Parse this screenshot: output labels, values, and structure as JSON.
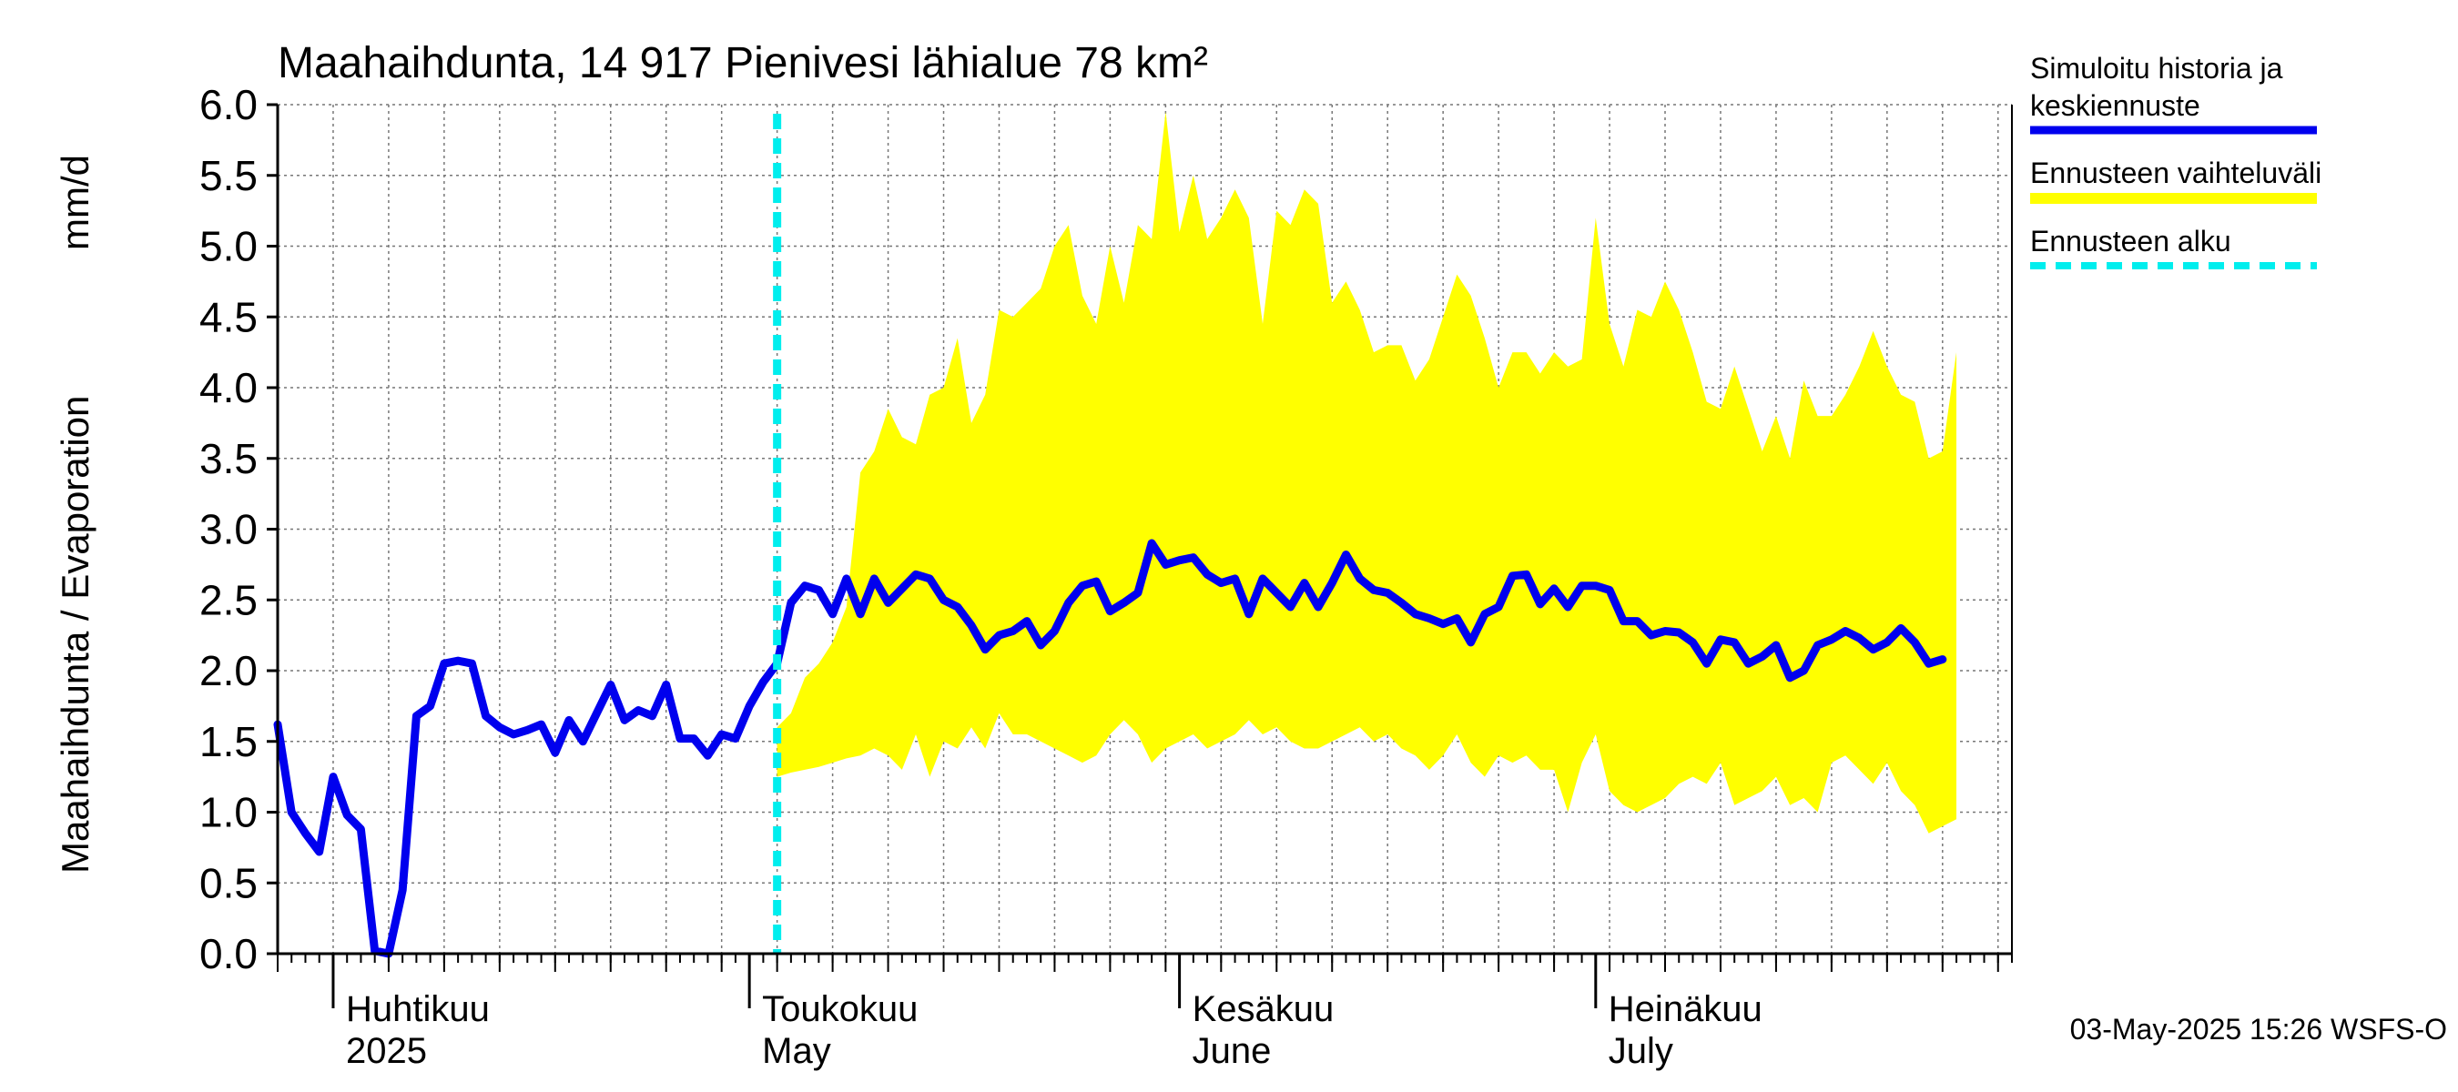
{
  "chart_data": {
    "type": "line",
    "title": "Maahaihdunta, 14 917 Pienivesi lähialue 78 km²",
    "ylabel_left": "Maahaihdunta / Evaporation",
    "ylabel_unit": "mm/d",
    "ylim": [
      0,
      6
    ],
    "yticks": [
      "0.0",
      "0.5",
      "1.0",
      "1.5",
      "2.0",
      "2.5",
      "3.0",
      "3.5",
      "4.0",
      "4.5",
      "5.0",
      "5.5",
      "6.0"
    ],
    "x_start": "2025-03-28",
    "x_end": "2025-07-31",
    "forecast_start": "2025-05-03",
    "month_labels": [
      {
        "date": "2025-04-01",
        "fi": "Huhtikuu",
        "en": "2025"
      },
      {
        "date": "2025-05-01",
        "fi": "Toukokuu",
        "en": "May"
      },
      {
        "date": "2025-06-01",
        "fi": "Kesäkuu",
        "en": "June"
      },
      {
        "date": "2025-07-01",
        "fi": "Heinäkuu",
        "en": "July"
      }
    ],
    "grid": true,
    "series": [
      {
        "name": "Simuloitu historia ja keskiennuste",
        "color": "#0000ee",
        "points": [
          [
            "2025-03-28",
            1.62
          ],
          [
            "2025-03-29",
            1.0
          ],
          [
            "2025-03-30",
            0.85
          ],
          [
            "2025-03-31",
            0.72
          ],
          [
            "2025-04-01",
            1.25
          ],
          [
            "2025-04-02",
            0.98
          ],
          [
            "2025-04-03",
            0.88
          ],
          [
            "2025-04-04",
            0.02
          ],
          [
            "2025-04-05",
            0.0
          ],
          [
            "2025-04-06",
            0.45
          ],
          [
            "2025-04-07",
            1.68
          ],
          [
            "2025-04-08",
            1.75
          ],
          [
            "2025-04-09",
            2.05
          ],
          [
            "2025-04-10",
            2.07
          ],
          [
            "2025-04-11",
            2.05
          ],
          [
            "2025-04-12",
            1.68
          ],
          [
            "2025-04-13",
            1.6
          ],
          [
            "2025-04-14",
            1.55
          ],
          [
            "2025-04-15",
            1.58
          ],
          [
            "2025-04-16",
            1.62
          ],
          [
            "2025-04-17",
            1.42
          ],
          [
            "2025-04-18",
            1.65
          ],
          [
            "2025-04-19",
            1.5
          ],
          [
            "2025-04-20",
            1.7
          ],
          [
            "2025-04-21",
            1.9
          ],
          [
            "2025-04-22",
            1.65
          ],
          [
            "2025-04-23",
            1.72
          ],
          [
            "2025-04-24",
            1.68
          ],
          [
            "2025-04-25",
            1.9
          ],
          [
            "2025-04-26",
            1.52
          ],
          [
            "2025-04-27",
            1.52
          ],
          [
            "2025-04-28",
            1.4
          ],
          [
            "2025-04-29",
            1.55
          ],
          [
            "2025-04-30",
            1.52
          ],
          [
            "2025-05-01",
            1.75
          ],
          [
            "2025-05-02",
            1.92
          ],
          [
            "2025-05-03",
            2.05
          ],
          [
            "2025-05-04",
            2.48
          ],
          [
            "2025-05-05",
            2.6
          ],
          [
            "2025-05-06",
            2.57
          ],
          [
            "2025-05-07",
            2.4
          ],
          [
            "2025-05-08",
            2.65
          ],
          [
            "2025-05-09",
            2.4
          ],
          [
            "2025-05-10",
            2.65
          ],
          [
            "2025-05-11",
            2.48
          ],
          [
            "2025-05-12",
            2.58
          ],
          [
            "2025-05-13",
            2.68
          ],
          [
            "2025-05-14",
            2.65
          ],
          [
            "2025-05-15",
            2.5
          ],
          [
            "2025-05-16",
            2.45
          ],
          [
            "2025-05-17",
            2.32
          ],
          [
            "2025-05-18",
            2.15
          ],
          [
            "2025-05-19",
            2.25
          ],
          [
            "2025-05-20",
            2.28
          ],
          [
            "2025-05-21",
            2.35
          ],
          [
            "2025-05-22",
            2.18
          ],
          [
            "2025-05-23",
            2.28
          ],
          [
            "2025-05-24",
            2.48
          ],
          [
            "2025-05-25",
            2.6
          ],
          [
            "2025-05-26",
            2.63
          ],
          [
            "2025-05-27",
            2.42
          ],
          [
            "2025-05-28",
            2.48
          ],
          [
            "2025-05-29",
            2.55
          ],
          [
            "2025-05-30",
            2.9
          ],
          [
            "2025-05-31",
            2.75
          ],
          [
            "2025-06-01",
            2.78
          ],
          [
            "2025-06-02",
            2.8
          ],
          [
            "2025-06-03",
            2.68
          ],
          [
            "2025-06-04",
            2.62
          ],
          [
            "2025-06-05",
            2.65
          ],
          [
            "2025-06-06",
            2.4
          ],
          [
            "2025-06-07",
            2.65
          ],
          [
            "2025-06-08",
            2.55
          ],
          [
            "2025-06-09",
            2.45
          ],
          [
            "2025-06-10",
            2.62
          ],
          [
            "2025-06-11",
            2.45
          ],
          [
            "2025-06-12",
            2.62
          ],
          [
            "2025-06-13",
            2.82
          ],
          [
            "2025-06-14",
            2.65
          ],
          [
            "2025-06-15",
            2.57
          ],
          [
            "2025-06-16",
            2.55
          ],
          [
            "2025-06-17",
            2.48
          ],
          [
            "2025-06-18",
            2.4
          ],
          [
            "2025-06-19",
            2.37
          ],
          [
            "2025-06-20",
            2.33
          ],
          [
            "2025-06-21",
            2.37
          ],
          [
            "2025-06-22",
            2.2
          ],
          [
            "2025-06-23",
            2.4
          ],
          [
            "2025-06-24",
            2.45
          ],
          [
            "2025-06-25",
            2.67
          ],
          [
            "2025-06-26",
            2.68
          ],
          [
            "2025-06-27",
            2.47
          ],
          [
            "2025-06-28",
            2.58
          ],
          [
            "2025-06-29",
            2.45
          ],
          [
            "2025-06-30",
            2.6
          ],
          [
            "2025-07-01",
            2.6
          ],
          [
            "2025-07-02",
            2.57
          ],
          [
            "2025-07-03",
            2.35
          ],
          [
            "2025-07-04",
            2.35
          ],
          [
            "2025-07-05",
            2.25
          ],
          [
            "2025-07-06",
            2.28
          ],
          [
            "2025-07-07",
            2.27
          ],
          [
            "2025-07-08",
            2.2
          ],
          [
            "2025-07-09",
            2.05
          ],
          [
            "2025-07-10",
            2.22
          ],
          [
            "2025-07-11",
            2.2
          ],
          [
            "2025-07-12",
            2.05
          ],
          [
            "2025-07-13",
            2.1
          ],
          [
            "2025-07-14",
            2.18
          ],
          [
            "2025-07-15",
            1.95
          ],
          [
            "2025-07-16",
            2.0
          ],
          [
            "2025-07-17",
            2.18
          ],
          [
            "2025-07-18",
            2.22
          ],
          [
            "2025-07-19",
            2.28
          ],
          [
            "2025-07-20",
            2.23
          ],
          [
            "2025-07-21",
            2.15
          ],
          [
            "2025-07-22",
            2.2
          ],
          [
            "2025-07-23",
            2.3
          ],
          [
            "2025-07-24",
            2.2
          ],
          [
            "2025-07-25",
            2.05
          ],
          [
            "2025-07-26",
            2.08
          ]
        ]
      },
      {
        "name": "Ennusteen vaihteluväli",
        "color": "#ffff00",
        "band": [
          [
            "2025-05-03",
            1.25,
            1.6
          ],
          [
            "2025-05-04",
            1.28,
            1.7
          ],
          [
            "2025-05-05",
            1.3,
            1.95
          ],
          [
            "2025-05-06",
            1.32,
            2.05
          ],
          [
            "2025-05-07",
            1.35,
            2.2
          ],
          [
            "2025-05-08",
            1.38,
            2.45
          ],
          [
            "2025-05-09",
            1.4,
            3.4
          ],
          [
            "2025-05-10",
            1.45,
            3.55
          ],
          [
            "2025-05-11",
            1.4,
            3.85
          ],
          [
            "2025-05-12",
            1.3,
            3.65
          ],
          [
            "2025-05-13",
            1.55,
            3.6
          ],
          [
            "2025-05-14",
            1.25,
            3.95
          ],
          [
            "2025-05-15",
            1.5,
            4.0
          ],
          [
            "2025-05-16",
            1.45,
            4.35
          ],
          [
            "2025-05-17",
            1.6,
            3.75
          ],
          [
            "2025-05-18",
            1.45,
            3.95
          ],
          [
            "2025-05-19",
            1.7,
            4.55
          ],
          [
            "2025-05-20",
            1.55,
            4.5
          ],
          [
            "2025-05-21",
            1.55,
            4.6
          ],
          [
            "2025-05-22",
            1.5,
            4.7
          ],
          [
            "2025-05-23",
            1.45,
            5.0
          ],
          [
            "2025-05-24",
            1.4,
            5.15
          ],
          [
            "2025-05-25",
            1.35,
            4.65
          ],
          [
            "2025-05-26",
            1.4,
            4.45
          ],
          [
            "2025-05-27",
            1.55,
            5.0
          ],
          [
            "2025-05-28",
            1.65,
            4.6
          ],
          [
            "2025-05-29",
            1.55,
            5.15
          ],
          [
            "2025-05-30",
            1.35,
            5.05
          ],
          [
            "2025-05-31",
            1.45,
            5.95
          ],
          [
            "2025-06-01",
            1.5,
            5.1
          ],
          [
            "2025-06-02",
            1.55,
            5.5
          ],
          [
            "2025-06-03",
            1.45,
            5.05
          ],
          [
            "2025-06-04",
            1.5,
            5.2
          ],
          [
            "2025-06-05",
            1.55,
            5.4
          ],
          [
            "2025-06-06",
            1.65,
            5.2
          ],
          [
            "2025-06-07",
            1.55,
            4.45
          ],
          [
            "2025-06-08",
            1.6,
            5.25
          ],
          [
            "2025-06-09",
            1.5,
            5.15
          ],
          [
            "2025-06-10",
            1.45,
            5.4
          ],
          [
            "2025-06-11",
            1.45,
            5.3
          ],
          [
            "2025-06-12",
            1.5,
            4.6
          ],
          [
            "2025-06-13",
            1.55,
            4.75
          ],
          [
            "2025-06-14",
            1.6,
            4.55
          ],
          [
            "2025-06-15",
            1.5,
            4.25
          ],
          [
            "2025-06-16",
            1.55,
            4.3
          ],
          [
            "2025-06-17",
            1.45,
            4.3
          ],
          [
            "2025-06-18",
            1.4,
            4.05
          ],
          [
            "2025-06-19",
            1.3,
            4.2
          ],
          [
            "2025-06-20",
            1.4,
            4.5
          ],
          [
            "2025-06-21",
            1.55,
            4.8
          ],
          [
            "2025-06-22",
            1.35,
            4.65
          ],
          [
            "2025-06-23",
            1.25,
            4.35
          ],
          [
            "2025-06-24",
            1.4,
            4.0
          ],
          [
            "2025-06-25",
            1.35,
            4.25
          ],
          [
            "2025-06-26",
            1.4,
            4.25
          ],
          [
            "2025-06-27",
            1.3,
            4.1
          ],
          [
            "2025-06-28",
            1.3,
            4.25
          ],
          [
            "2025-06-29",
            1.0,
            4.15
          ],
          [
            "2025-06-30",
            1.35,
            4.2
          ],
          [
            "2025-07-01",
            1.55,
            5.2
          ],
          [
            "2025-07-02",
            1.15,
            4.45
          ],
          [
            "2025-07-03",
            1.05,
            4.15
          ],
          [
            "2025-07-04",
            1.0,
            4.55
          ],
          [
            "2025-07-05",
            1.05,
            4.5
          ],
          [
            "2025-07-06",
            1.1,
            4.75
          ],
          [
            "2025-07-07",
            1.2,
            4.55
          ],
          [
            "2025-07-08",
            1.25,
            4.25
          ],
          [
            "2025-07-09",
            1.2,
            3.9
          ],
          [
            "2025-07-10",
            1.35,
            3.85
          ],
          [
            "2025-07-11",
            1.05,
            4.15
          ],
          [
            "2025-07-12",
            1.1,
            3.85
          ],
          [
            "2025-07-13",
            1.15,
            3.55
          ],
          [
            "2025-07-14",
            1.25,
            3.8
          ],
          [
            "2025-07-15",
            1.05,
            3.5
          ],
          [
            "2025-07-16",
            1.1,
            4.05
          ],
          [
            "2025-07-17",
            1.0,
            3.8
          ],
          [
            "2025-07-18",
            1.35,
            3.8
          ],
          [
            "2025-07-19",
            1.4,
            3.95
          ],
          [
            "2025-07-20",
            1.3,
            4.15
          ],
          [
            "2025-07-21",
            1.2,
            4.4
          ],
          [
            "2025-07-22",
            1.35,
            4.15
          ],
          [
            "2025-07-23",
            1.15,
            3.95
          ],
          [
            "2025-07-24",
            1.05,
            3.9
          ],
          [
            "2025-07-25",
            0.85,
            3.5
          ],
          [
            "2025-07-26",
            0.9,
            3.55
          ],
          [
            "2025-07-27",
            0.95,
            4.25
          ]
        ]
      },
      {
        "name": "Ennusteen alku",
        "color": "#00eeee"
      }
    ]
  },
  "legend": {
    "items": [
      {
        "line1": "Simuloitu historia ja",
        "line2": "keskiennuste",
        "color": "#0000ee",
        "style": "solid"
      },
      {
        "line1": "Ennusteen vaihteluväli",
        "line2": "",
        "color": "#ffff00",
        "style": "solid"
      },
      {
        "line1": "Ennusteen alku",
        "line2": "",
        "color": "#00eeee",
        "style": "dashed"
      }
    ]
  },
  "footer": "03-May-2025 15:26 WSFS-O"
}
